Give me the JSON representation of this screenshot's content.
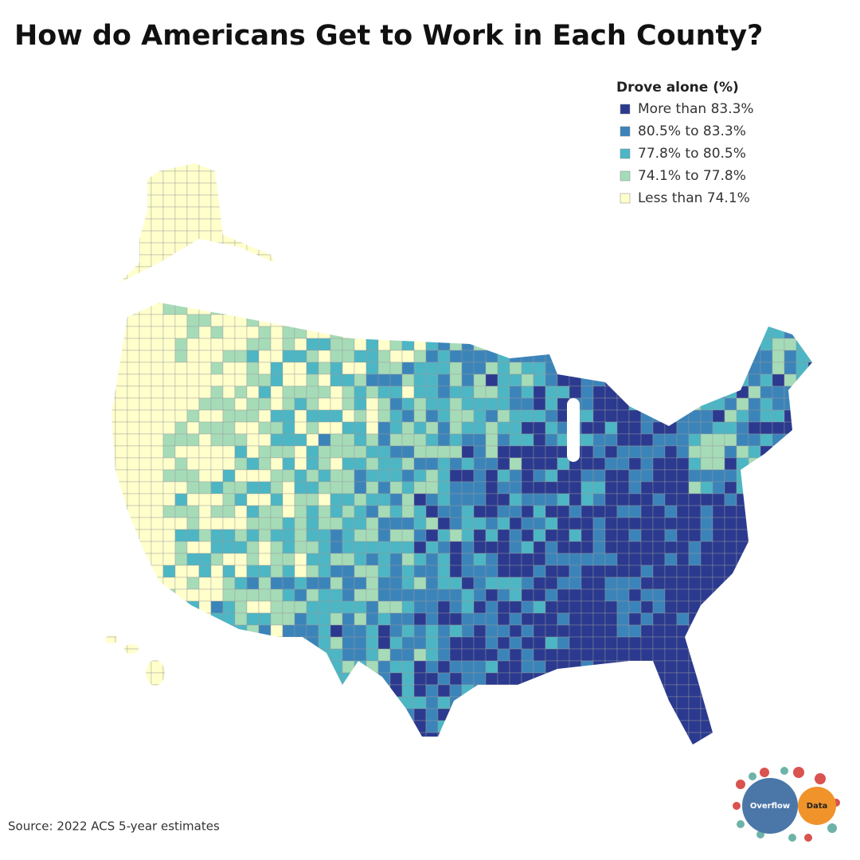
{
  "title": "How do Americans Get to Work in Each County?",
  "legend": {
    "title": "Drove alone (%)",
    "items": [
      {
        "label": "More than 83.3%",
        "color": "#2b3a8f"
      },
      {
        "label": "80.5% to 83.3%",
        "color": "#3b84ba"
      },
      {
        "label": "77.8% to 80.5%",
        "color": "#4db6c4"
      },
      {
        "label": "74.1% to 77.8%",
        "color": "#a6dbb8"
      },
      {
        "label": "Less than 74.1%",
        "color": "#ffffcc"
      }
    ]
  },
  "source": "Source: 2022 ACS 5-year estimates",
  "logo": {
    "left": "Overflow",
    "right": "Data"
  }
}
